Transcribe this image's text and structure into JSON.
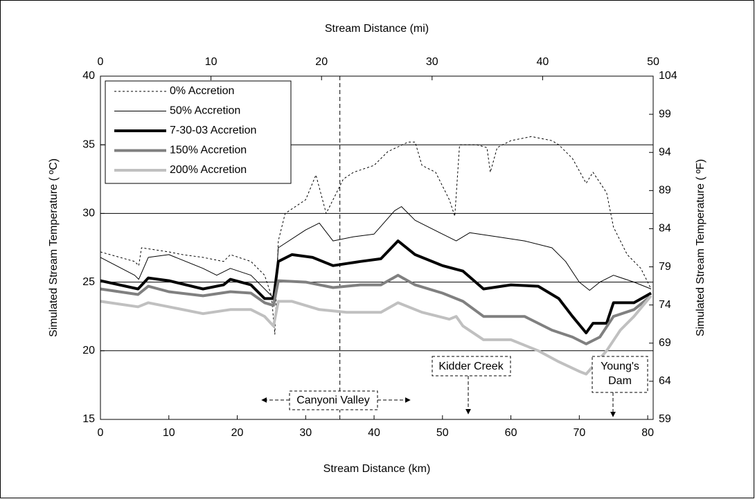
{
  "chart_data": {
    "type": "line",
    "xlabel": "Stream Distance (km)",
    "x2label": "Stream Distance (mi)",
    "ylabel": "Simulated Stream Temperature ( ºC)",
    "y2label": "Simulated Stream Temperature ( ºF)",
    "xlim": [
      0,
      80.8
    ],
    "xticks": [
      0,
      10,
      20,
      30,
      40,
      50,
      60,
      70,
      80
    ],
    "x2lim": [
      0,
      50
    ],
    "x2ticks": [
      0,
      10,
      20,
      30,
      40,
      50
    ],
    "ylim": [
      15,
      40
    ],
    "yticks": [
      15,
      20,
      25,
      30,
      35,
      40
    ],
    "y2lim": [
      59,
      104
    ],
    "y2ticks": [
      59,
      64,
      69,
      74,
      79,
      84,
      89,
      94,
      99,
      104
    ],
    "grid": true,
    "vline_x": 35,
    "legend": "top-left",
    "series": [
      {
        "name": "0% Accretion",
        "color": "#000000",
        "dashed": true,
        "width": 1,
        "x": [
          0,
          5,
          5.6,
          6,
          10,
          12,
          15,
          18,
          19,
          22,
          24,
          25,
          25.5,
          26,
          27,
          30,
          31.5,
          33,
          34,
          35.5,
          37,
          40,
          42,
          45,
          46,
          47,
          49,
          51,
          51.8,
          52.5,
          55,
          56.5,
          57,
          58,
          60,
          63,
          66,
          67,
          69,
          71,
          72,
          74,
          75,
          77,
          79,
          80.5
        ],
        "values": [
          27.2,
          26.5,
          26.2,
          27.5,
          27.2,
          27,
          26.8,
          26.5,
          27,
          26.5,
          25.5,
          24,
          21.2,
          28,
          30,
          31,
          32.8,
          30,
          31,
          32.5,
          33,
          33.5,
          34.5,
          35.2,
          35.2,
          33.5,
          33,
          31,
          29.8,
          35,
          35,
          34.8,
          33,
          34.8,
          35.3,
          35.6,
          35.3,
          35,
          34,
          32.2,
          33,
          31.5,
          29,
          27,
          26,
          24.5
        ]
      },
      {
        "name": "50% Accretion",
        "color": "#000000",
        "dashed": false,
        "width": 1,
        "x": [
          0,
          5,
          5.6,
          7,
          10,
          15,
          17,
          19,
          22,
          25,
          25.5,
          26,
          30,
          32,
          34,
          37,
          40,
          43,
          44,
          46,
          50,
          52,
          54,
          58,
          62,
          66,
          68,
          70,
          71.5,
          73,
          75,
          78,
          80.5
        ],
        "values": [
          26.8,
          25.5,
          25.2,
          26.8,
          27,
          26,
          25.5,
          26,
          25.5,
          24,
          23.8,
          27.5,
          28.8,
          29.3,
          28,
          28.3,
          28.5,
          30.2,
          30.5,
          29.5,
          28.5,
          28,
          28.6,
          28.3,
          28,
          27.5,
          26.5,
          25,
          24.4,
          25,
          25.5,
          25,
          24.5
        ]
      },
      {
        "name": "7-30-03 Accretion",
        "color": "#000000",
        "dashed": false,
        "width": 4,
        "x": [
          0,
          5.5,
          7,
          10,
          15,
          18,
          19,
          22,
          24,
          25.3,
          26,
          28,
          31,
          34,
          38,
          41,
          43.5,
          46,
          50,
          53,
          56,
          60,
          64,
          67,
          69,
          71,
          72,
          74,
          75,
          78,
          80.5
        ],
        "values": [
          25.1,
          24.5,
          25.3,
          25.1,
          24.5,
          24.8,
          25.2,
          24.8,
          23.8,
          23.8,
          26.5,
          27,
          26.8,
          26.2,
          26.5,
          26.7,
          28,
          27,
          26.2,
          25.8,
          24.5,
          24.8,
          24.7,
          23.8,
          22.5,
          21.3,
          22,
          22,
          23.5,
          23.5,
          24.2
        ]
      },
      {
        "name": "150% Accretion",
        "color": "#808080",
        "dashed": false,
        "width": 4,
        "x": [
          0,
          5.5,
          7,
          10,
          15,
          19,
          22,
          24,
          25.3,
          26,
          30,
          34,
          38,
          41,
          43.5,
          46,
          50,
          53,
          56,
          62,
          66,
          69,
          71,
          73,
          75,
          78,
          80.5
        ],
        "values": [
          24.5,
          24.1,
          24.7,
          24.3,
          24,
          24.3,
          24.2,
          23.5,
          23.3,
          25.1,
          25,
          24.6,
          24.8,
          24.8,
          25.5,
          24.8,
          24.2,
          23.6,
          22.5,
          22.5,
          21.5,
          21,
          20.5,
          21,
          22.5,
          23,
          24
        ]
      },
      {
        "name": "200% Accretion",
        "color": "#c0c0c0",
        "dashed": false,
        "width": 4,
        "x": [
          0,
          5.5,
          7,
          10,
          15,
          19,
          22,
          24,
          25.3,
          26,
          28,
          32,
          36,
          41,
          43.5,
          47,
          51,
          52,
          53,
          56,
          60,
          64,
          67,
          70,
          71,
          74,
          76,
          78,
          80.5
        ],
        "values": [
          23.6,
          23.2,
          23.5,
          23.2,
          22.7,
          23,
          23,
          22.5,
          21.8,
          23.6,
          23.6,
          23,
          22.8,
          22.8,
          23.5,
          22.8,
          22.3,
          22.5,
          21.8,
          20.8,
          20.8,
          20,
          19.2,
          18.5,
          18.3,
          20,
          21.5,
          22.5,
          24
        ]
      }
    ],
    "annotations": {
      "canyon": "Canyoni Valley",
      "kidder": "Kidder Creek",
      "dam": [
        "Young's",
        "Dam"
      ]
    }
  }
}
